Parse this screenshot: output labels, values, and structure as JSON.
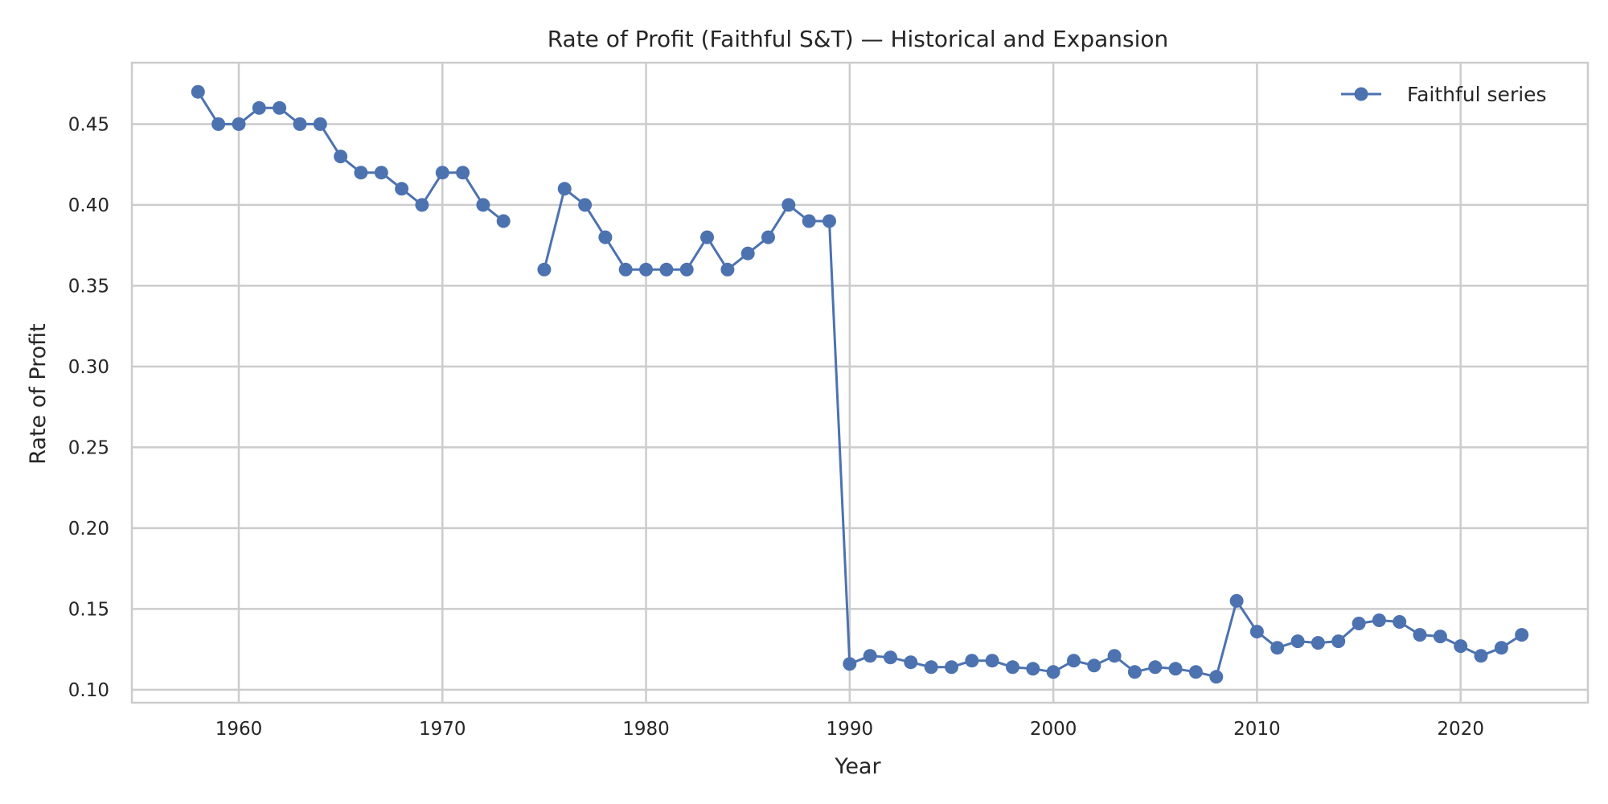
{
  "chart_data": {
    "type": "line",
    "title": "Rate of Profit (Faithful S&T) — Historical and Expansion",
    "xlabel": "Year",
    "ylabel": "Rate of Profit",
    "xlim": [
      1954.75,
      2026.25
    ],
    "ylim": [
      0.092,
      0.488
    ],
    "xticks": [
      1960,
      1970,
      1980,
      1990,
      2000,
      2010,
      2020
    ],
    "yticks": [
      0.1,
      0.15,
      0.2,
      0.25,
      0.3,
      0.35,
      0.4,
      0.45
    ],
    "ytick_labels": [
      "0.10",
      "0.15",
      "0.20",
      "0.25",
      "0.30",
      "0.35",
      "0.40",
      "0.45"
    ],
    "grid": true,
    "legend": "top-right",
    "colors": {
      "series": "#4c72b0",
      "grid": "#cccccc",
      "frame": "#cccccc"
    },
    "series": [
      {
        "name": "Faithful series",
        "x": [
          1958,
          1959,
          1960,
          1961,
          1962,
          1963,
          1964,
          1965,
          1966,
          1967,
          1968,
          1969,
          1970,
          1971,
          1972,
          1973,
          1974,
          1975,
          1976,
          1977,
          1978,
          1979,
          1980,
          1981,
          1982,
          1983,
          1984,
          1985,
          1986,
          1987,
          1988,
          1989,
          1990,
          1991,
          1992,
          1993,
          1994,
          1995,
          1996,
          1997,
          1998,
          1999,
          2000,
          2001,
          2002,
          2003,
          2004,
          2005,
          2006,
          2007,
          2008,
          2009,
          2010,
          2011,
          2012,
          2013,
          2014,
          2015,
          2016,
          2017,
          2018,
          2019,
          2020,
          2021,
          2022,
          2023
        ],
        "y": [
          0.47,
          0.45,
          0.45,
          0.46,
          0.46,
          0.45,
          0.45,
          0.43,
          0.42,
          0.42,
          0.41,
          0.4,
          0.42,
          0.42,
          0.4,
          0.39,
          null,
          0.36,
          0.41,
          0.4,
          0.38,
          0.36,
          0.36,
          0.36,
          0.36,
          0.38,
          0.36,
          0.37,
          0.38,
          0.4,
          0.39,
          0.39,
          0.116,
          0.121,
          0.12,
          0.117,
          0.114,
          0.114,
          0.118,
          0.118,
          0.114,
          0.113,
          0.111,
          0.118,
          0.115,
          0.121,
          0.111,
          0.114,
          0.113,
          0.111,
          0.108,
          0.155,
          0.136,
          0.126,
          0.13,
          0.129,
          0.13,
          0.141,
          0.143,
          0.142,
          0.134,
          0.133,
          0.127,
          0.121,
          0.126,
          0.134
        ]
      }
    ]
  }
}
